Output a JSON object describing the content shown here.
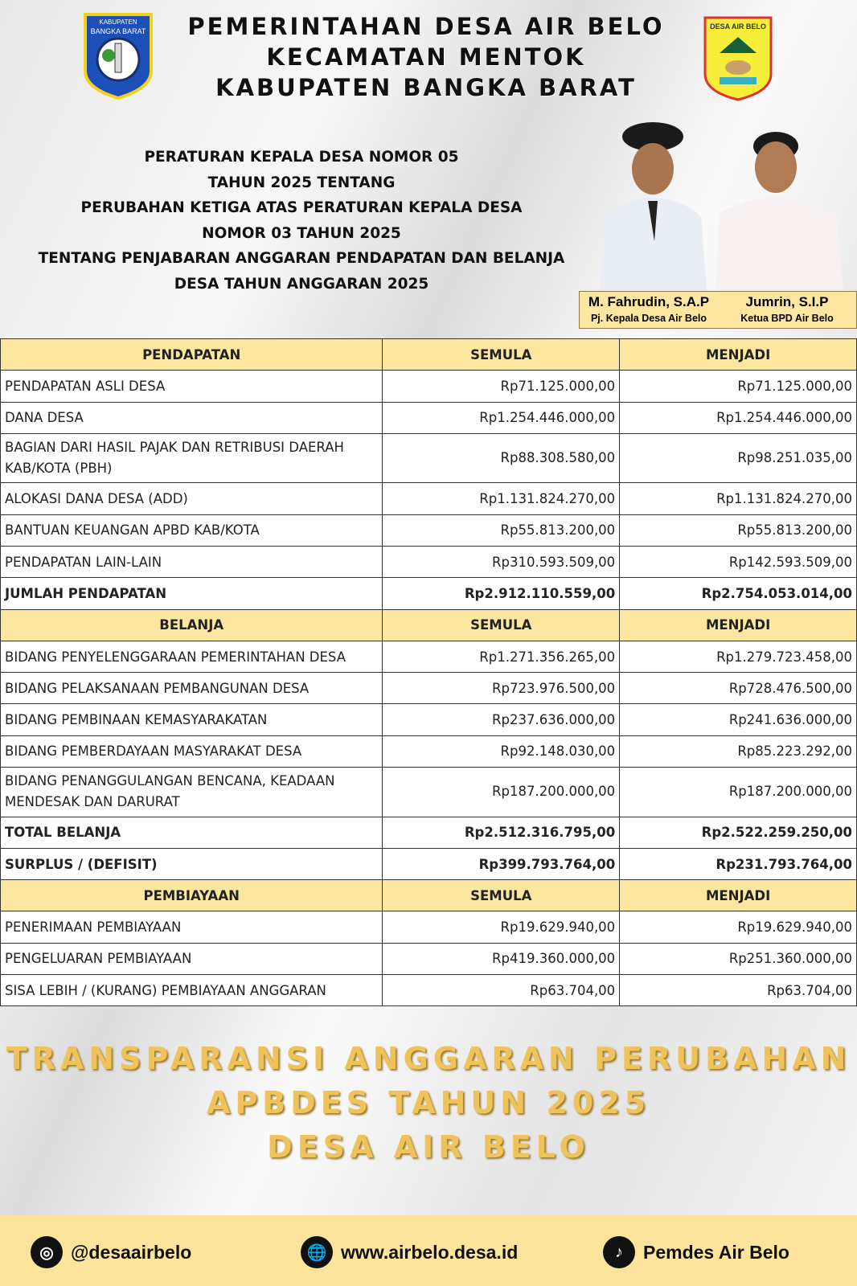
{
  "header": {
    "lines": [
      "PEMERINTAHAN DESA AIR BELO",
      "KECAMATAN MENTOK",
      "KABUPATEN BANGKA BARAT"
    ],
    "logo_left_text": "KABUPATEN BANGKA BARAT",
    "logo_right_text": "DESA AIR BELO"
  },
  "regulation": [
    "PERATURAN KEPALA DESA NOMOR 05",
    "TAHUN 2025 TENTANG",
    "PERUBAHAN KETIGA ATAS PERATURAN KEPALA DESA",
    "NOMOR 03 TAHUN 2025",
    "TENTANG PENJABARAN ANGGARAN PENDAPATAN DAN BELANJA",
    "DESA TAHUN ANGGARAN 2025"
  ],
  "officials": [
    {
      "name": "M. Fahrudin, S.A.P",
      "role": "Pj. Kepala Desa Air Belo"
    },
    {
      "name": "Jumrin, S.I.P",
      "role": "Ketua BPD Air Belo"
    }
  ],
  "table": {
    "rows": [
      {
        "type": "hdr",
        "cells": [
          "PENDAPATAN",
          "SEMULA",
          "MENJADI"
        ]
      },
      {
        "cells": [
          "PENDAPATAN ASLI DESA",
          "Rp71.125.000,00",
          "Rp71.125.000,00"
        ]
      },
      {
        "cells": [
          "DANA DESA",
          "Rp1.254.446.000,00",
          "Rp1.254.446.000,00"
        ]
      },
      {
        "type": "two",
        "cells": [
          "BAGIAN DARI HASIL PAJAK DAN RETRIBUSI DAERAH KAB/KOTA (PBH)",
          "Rp88.308.580,00",
          "Rp98.251.035,00"
        ]
      },
      {
        "cells": [
          "ALOKASI DANA DESA (ADD)",
          "Rp1.131.824.270,00",
          "Rp1.131.824.270,00"
        ]
      },
      {
        "cells": [
          "BANTUAN KEUANGAN APBD KAB/KOTA",
          "Rp55.813.200,00",
          "Rp55.813.200,00"
        ]
      },
      {
        "cells": [
          "PENDAPATAN LAIN-LAIN",
          "Rp310.593.509,00",
          "Rp142.593.509,00"
        ]
      },
      {
        "type": "tot",
        "cells": [
          "JUMLAH PENDAPATAN",
          "Rp2.912.110.559,00",
          "Rp2.754.053.014,00"
        ]
      },
      {
        "type": "hdr",
        "cells": [
          "BELANJA",
          "SEMULA",
          "MENJADI"
        ]
      },
      {
        "cells": [
          "BIDANG PENYELENGGARAAN PEMERINTAHAN DESA",
          "Rp1.271.356.265,00",
          "Rp1.279.723.458,00"
        ]
      },
      {
        "cells": [
          "BIDANG PELAKSANAAN PEMBANGUNAN DESA",
          "Rp723.976.500,00",
          "Rp728.476.500,00"
        ]
      },
      {
        "cells": [
          "BIDANG PEMBINAAN KEMASYARAKATAN",
          "Rp237.636.000,00",
          "Rp241.636.000,00"
        ]
      },
      {
        "cells": [
          "BIDANG PEMBERDAYAAN MASYARAKAT DESA",
          "Rp92.148.030,00",
          "Rp85.223.292,00"
        ]
      },
      {
        "type": "two",
        "cells": [
          "BIDANG PENANGGULANGAN BENCANA, KEADAAN MENDESAK DAN DARURAT",
          "Rp187.200.000,00",
          "Rp187.200.000,00"
        ]
      },
      {
        "type": "tot",
        "cells": [
          "TOTAL BELANJA",
          "Rp2.512.316.795,00",
          "Rp2.522.259.250,00"
        ]
      },
      {
        "type": "tot",
        "cells": [
          "SURPLUS / (DEFISIT)",
          "Rp399.793.764,00",
          "Rp231.793.764,00"
        ]
      },
      {
        "type": "hdr",
        "cells": [
          "PEMBIAYAAN",
          "SEMULA",
          "MENJADI"
        ]
      },
      {
        "cells": [
          "PENERIMAAN PEMBIAYAAN",
          "Rp19.629.940,00",
          "Rp19.629.940,00"
        ]
      },
      {
        "cells": [
          "PENGELUARAN PEMBIAYAAN",
          "Rp419.360.000,00",
          "Rp251.360.000,00"
        ]
      },
      {
        "cells": [
          "SISA LEBIH / (KURANG) PEMBIAYAAN ANGGARAN",
          "Rp63.704,00",
          "Rp63.704,00"
        ]
      }
    ]
  },
  "banner": [
    "TRANSPARANSI ANGGARAN PERUBAHAN",
    "APBDES TAHUN 2025",
    "DESA AIR BELO"
  ],
  "footer": {
    "instagram": "@desaairbelo",
    "website": "www.airbelo.desa.id",
    "tiktok": "Pemdes Air Belo"
  },
  "colors": {
    "accent": "#fde7a0",
    "banner": "#f0c35a"
  }
}
